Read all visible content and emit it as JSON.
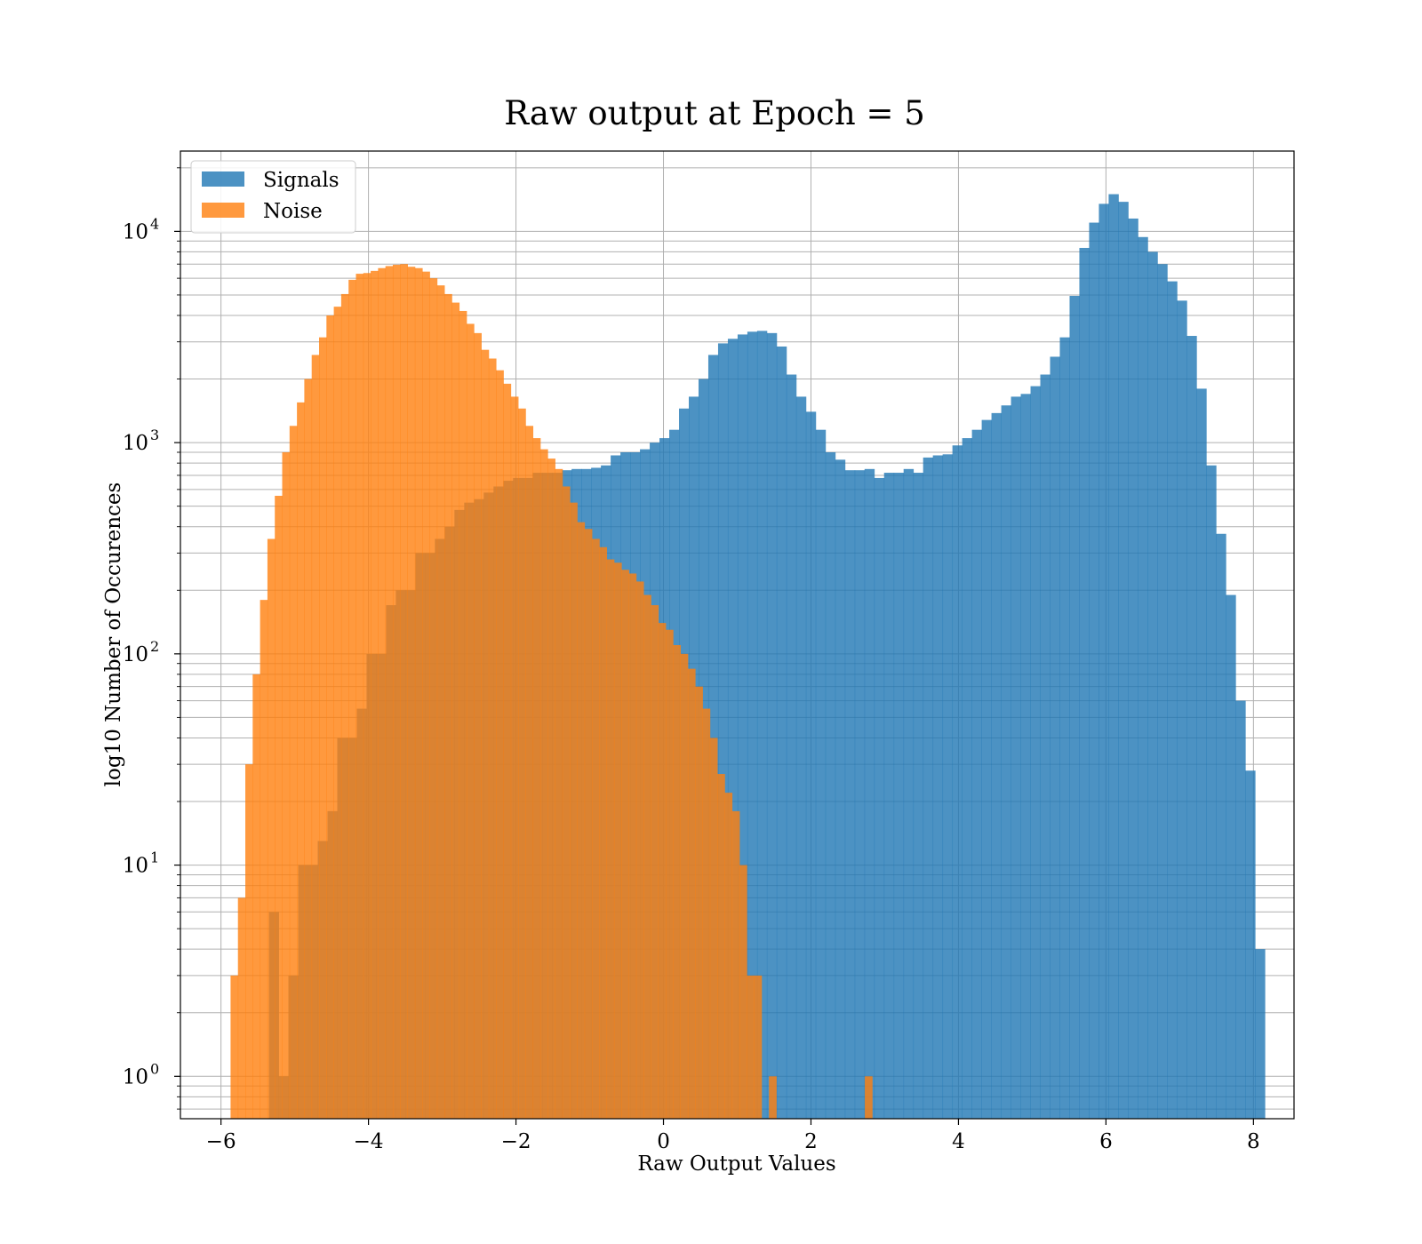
{
  "chart_data": {
    "type": "bar",
    "title": "Raw output at Epoch = 5",
    "xlabel": "Raw Output Values",
    "ylabel": "log10 Number of Occurences",
    "x_scale": "linear",
    "y_scale": "log",
    "xlim": [
      -6.55,
      8.55
    ],
    "ylim": [
      0.63,
      24000
    ],
    "grid": true,
    "x_ticks": [
      -6,
      -4,
      -2,
      0,
      2,
      4,
      6,
      8
    ],
    "x_tick_labels": [
      "−6",
      "−4",
      "−2",
      "0",
      "2",
      "4",
      "6",
      "8"
    ],
    "y_ticks": [
      1,
      10,
      100,
      1000,
      10000
    ],
    "y_tick_labels": [
      {
        "base": "10",
        "exp": "0"
      },
      {
        "base": "10",
        "exp": "1"
      },
      {
        "base": "10",
        "exp": "2"
      },
      {
        "base": "10",
        "exp": "3"
      },
      {
        "base": "10",
        "exp": "4"
      }
    ],
    "legend_position": "top-left",
    "series": [
      {
        "name": "Signals",
        "color": "#1f77b4",
        "opacity": 0.8,
        "bin_start": -5.35,
        "bin_width": 0.1324,
        "values": [
          6,
          1,
          3,
          10,
          10,
          13,
          18,
          40,
          40,
          55,
          100,
          100,
          170,
          200,
          200,
          300,
          300,
          350,
          400,
          480,
          520,
          540,
          580,
          620,
          660,
          680,
          680,
          720,
          720,
          720,
          740,
          750,
          750,
          760,
          780,
          870,
          900,
          900,
          930,
          1000,
          1050,
          1150,
          1450,
          1650,
          2000,
          2600,
          2950,
          3100,
          3250,
          3350,
          3380,
          3300,
          2850,
          2100,
          1650,
          1400,
          1150,
          900,
          830,
          740,
          740,
          750,
          680,
          720,
          720,
          750,
          720,
          850,
          870,
          880,
          970,
          1050,
          1150,
          1280,
          1380,
          1500,
          1650,
          1700,
          1850,
          2100,
          2550,
          3150,
          4950,
          8350,
          11000,
          13500,
          15000,
          13800,
          11500,
          9400,
          8000,
          7000,
          5800,
          4700,
          3200,
          1800,
          780,
          370,
          190,
          60,
          28,
          4
        ]
      },
      {
        "name": "Noise",
        "color": "#ff7f0e",
        "opacity": 0.8,
        "bin_start": -5.87,
        "bin_width": 0.1,
        "values": [
          3,
          7,
          30,
          80,
          180,
          350,
          560,
          900,
          1200,
          1550,
          2000,
          2600,
          3150,
          4000,
          4400,
          5050,
          5900,
          6300,
          6350,
          6500,
          6700,
          6850,
          6950,
          7000,
          6800,
          6700,
          6450,
          6000,
          5550,
          5050,
          4600,
          4200,
          3650,
          3300,
          2750,
          2500,
          2200,
          1900,
          1650,
          1450,
          1200,
          1050,
          930,
          840,
          750,
          620,
          520,
          420,
          390,
          350,
          320,
          280,
          270,
          250,
          240,
          220,
          190,
          170,
          140,
          130,
          110,
          100,
          85,
          70,
          55,
          40,
          27,
          22,
          18,
          10,
          3,
          3,
          0,
          1,
          0,
          0,
          0,
          0,
          0,
          0,
          0,
          0,
          0,
          0,
          0,
          0,
          1
        ]
      }
    ]
  }
}
